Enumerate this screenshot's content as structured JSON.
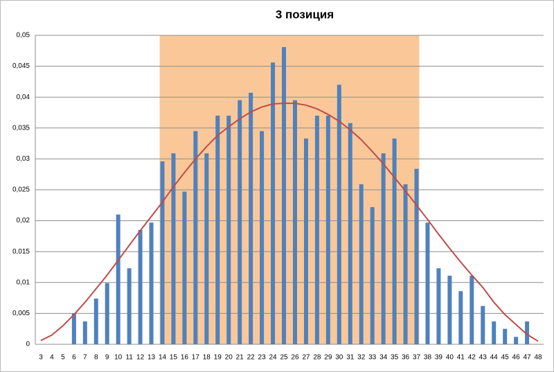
{
  "chart_data": {
    "type": "bar",
    "title": "3 позиция",
    "categories": [
      "3",
      "4",
      "5",
      "6",
      "7",
      "8",
      "9",
      "10",
      "11",
      "12",
      "13",
      "14",
      "15",
      "16",
      "17",
      "18",
      "19",
      "20",
      "21",
      "22",
      "23",
      "24",
      "25",
      "26",
      "27",
      "28",
      "29",
      "30",
      "31",
      "32",
      "33",
      "34",
      "35",
      "36",
      "37",
      "38",
      "39",
      "40",
      "41",
      "42",
      "43",
      "44",
      "45",
      "46",
      "47",
      "48"
    ],
    "series": [
      {
        "type": "bar",
        "color": "#4f81bd",
        "values": [
          0,
          0,
          0,
          0.005,
          0.0037,
          0.0074,
          0.0099,
          0.021,
          0.0123,
          0.0185,
          0.0197,
          0.0296,
          0.0309,
          0.0247,
          0.0345,
          0.0309,
          0.037,
          0.037,
          0.0395,
          0.0407,
          0.0345,
          0.0456,
          0.0481,
          0.0395,
          0.0333,
          0.037,
          0.037,
          0.042,
          0.0358,
          0.0259,
          0.0222,
          0.0309,
          0.0333,
          0.0259,
          0.0284,
          0.0197,
          0.0123,
          0.0111,
          0.0086,
          0.0111,
          0.0062,
          0.0037,
          0.0025,
          0.0012,
          0.0037,
          0
        ]
      },
      {
        "type": "line",
        "color": "#be4b48",
        "values": [
          0.0006,
          0.0015,
          0.003,
          0.0048,
          0.0068,
          0.009,
          0.0112,
          0.0136,
          0.016,
          0.0184,
          0.0207,
          0.023,
          0.0255,
          0.0278,
          0.03,
          0.032,
          0.0338,
          0.0352,
          0.0365,
          0.0376,
          0.0384,
          0.0389,
          0.039,
          0.039,
          0.0387,
          0.0381,
          0.0372,
          0.0361,
          0.0347,
          0.0331,
          0.0312,
          0.0292,
          0.027,
          0.0248,
          0.0225,
          0.0202,
          0.0178,
          0.0155,
          0.0133,
          0.0112,
          0.0092,
          0.0068,
          0.0048,
          0.0032,
          0.0016,
          0.0005
        ]
      }
    ],
    "highlight": {
      "from": "14",
      "to": "37",
      "color": "#fac898"
    },
    "ylim": [
      0,
      0.05
    ],
    "yticks": [
      0,
      {
        "value": 0.005,
        "label": "0,005"
      },
      {
        "value": 0.01,
        "label": "0,01"
      },
      {
        "value": 0.015,
        "label": "0,015"
      },
      {
        "value": 0.02,
        "label": "0,02"
      },
      {
        "value": 0.025,
        "label": "0,025"
      },
      {
        "value": 0.03,
        "label": "0,03"
      },
      {
        "value": 0.035,
        "label": "0,035"
      },
      {
        "value": 0.04,
        "label": "0,04"
      },
      {
        "value": 0.045,
        "label": "0,045"
      },
      {
        "value": 0.05,
        "label": "0,05"
      }
    ],
    "grid": true
  }
}
